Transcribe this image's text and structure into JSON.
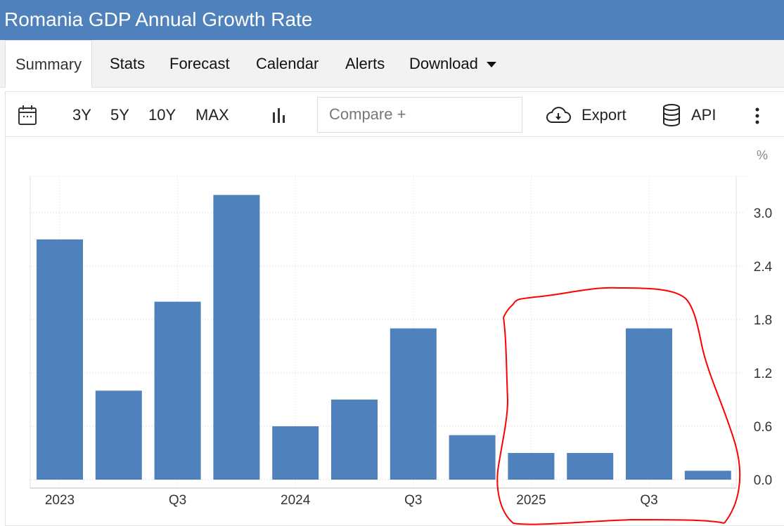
{
  "header": {
    "title": "Romania GDP Annual Growth Rate"
  },
  "tabs": [
    {
      "label": "Summary"
    },
    {
      "label": "Stats"
    },
    {
      "label": "Forecast"
    },
    {
      "label": "Calendar"
    },
    {
      "label": "Alerts"
    },
    {
      "label": "Download"
    }
  ],
  "toolbar": {
    "ranges": [
      "3Y",
      "5Y",
      "10Y",
      "MAX"
    ],
    "compare_placeholder": "Compare +",
    "export_label": "Export",
    "api_label": "API"
  },
  "colors": {
    "bar": "#4f81bd",
    "header": "#4f81bd",
    "annotation": "#ff0000"
  },
  "chart_data": {
    "type": "bar",
    "title": "Romania GDP Annual Growth Rate",
    "unit": "%",
    "categories": [
      "2023 Q1",
      "2023 Q2",
      "2023 Q3",
      "2023 Q4",
      "2024 Q1",
      "2024 Q2",
      "2024 Q3",
      "2024 Q4",
      "2025 Q1",
      "2025 Q2",
      "2025 Q3",
      "2025 Q4"
    ],
    "values": [
      2.7,
      1.0,
      2.0,
      3.2,
      0.6,
      0.9,
      1.7,
      0.5,
      0.3,
      0.3,
      1.7,
      0.1
    ],
    "x_tick_labels": [
      {
        "index": 0,
        "label": "2023"
      },
      {
        "index": 2,
        "label": "Q3"
      },
      {
        "index": 4,
        "label": "2024"
      },
      {
        "index": 6,
        "label": "Q3"
      },
      {
        "index": 8,
        "label": "2025"
      },
      {
        "index": 10,
        "label": "Q3"
      }
    ],
    "y_ticks": [
      "0.0",
      "0.6",
      "1.2",
      "1.8",
      "2.4",
      "3.0"
    ],
    "ylim": [
      0,
      3.4
    ],
    "grid": true,
    "annotation": "red hand-drawn loop around 2025 quarters"
  }
}
